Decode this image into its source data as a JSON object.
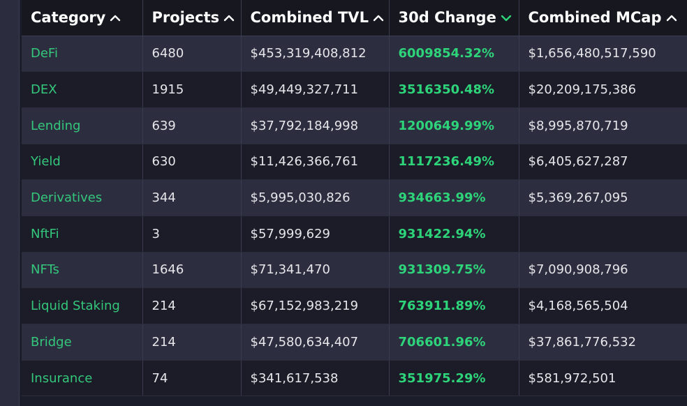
{
  "columns": [
    {
      "label": "Category",
      "sort_icon": "chevron-up-icon"
    },
    {
      "label": "Projects",
      "sort_icon": "chevron-up-icon"
    },
    {
      "label": "Combined TVL",
      "sort_icon": "chevron-up-icon"
    },
    {
      "label": "30d Change",
      "sort_icon": "chevron-down-icon",
      "active": true
    },
    {
      "label": "Combined MCap",
      "sort_icon": "chevron-up-icon"
    }
  ],
  "rows": [
    {
      "category": "DeFi",
      "projects": "6480",
      "tvl": "$453,319,408,812",
      "change": "6009854.32%",
      "mcap": "$1,656,480,517,590"
    },
    {
      "category": "DEX",
      "projects": "1915",
      "tvl": "$49,449,327,711",
      "change": "3516350.48%",
      "mcap": "$20,209,175,386"
    },
    {
      "category": "Lending",
      "projects": "639",
      "tvl": "$37,792,184,998",
      "change": "1200649.99%",
      "mcap": "$8,995,870,719"
    },
    {
      "category": "Yield",
      "projects": "630",
      "tvl": "$11,426,366,761",
      "change": "1117236.49%",
      "mcap": "$6,405,627,287"
    },
    {
      "category": "Derivatives",
      "projects": "344",
      "tvl": "$5,995,030,826",
      "change": "934663.99%",
      "mcap": "$5,369,267,095"
    },
    {
      "category": "NftFi",
      "projects": "3",
      "tvl": "$57,999,629",
      "change": "931422.94%",
      "mcap": ""
    },
    {
      "category": "NFTs",
      "projects": "1646",
      "tvl": "$71,341,470",
      "change": "931309.75%",
      "mcap": "$7,090,908,796"
    },
    {
      "category": "Liquid Staking",
      "projects": "214",
      "tvl": "$67,152,983,219",
      "change": "763911.89%",
      "mcap": "$4,168,565,504"
    },
    {
      "category": "Bridge",
      "projects": "214",
      "tvl": "$47,580,634,407",
      "change": "706601.96%",
      "mcap": "$37,861,776,532"
    },
    {
      "category": "Insurance",
      "projects": "74",
      "tvl": "$341,617,538",
      "change": "351975.29%",
      "mcap": "$581,972,501"
    }
  ],
  "colors": {
    "category_text": "#34c77b",
    "change_text": "#2ed47a",
    "active_sort_icon": "#2ed47a",
    "header_bg": "#16171f",
    "row_odd_bg": "#2c2e40",
    "row_even_bg": "#1b1c28"
  }
}
